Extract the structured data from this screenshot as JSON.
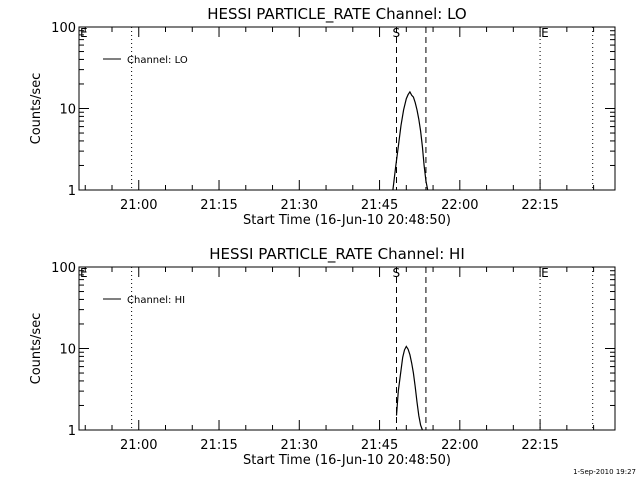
{
  "timestamp": "1-Sep-2010 19:27",
  "chart_data": [
    {
      "type": "line",
      "title": "HESSI PARTICLE_RATE Channel: LO",
      "xlabel": "Start Time (16-Jun-10 20:48:50)",
      "ylabel": "Counts/sec",
      "yscale": "log",
      "ylim": [
        1,
        100
      ],
      "xlim": [
        "20:48:50",
        "22:29:00"
      ],
      "xticks": [
        "21:00",
        "21:15",
        "21:30",
        "21:45",
        "22:00",
        "22:15"
      ],
      "yticks": [
        "1",
        "10",
        "100"
      ],
      "legend": {
        "label": "Channel: LO",
        "position": "top-left"
      },
      "markers": [
        {
          "type": "dotted",
          "time": "20:58:40",
          "label": "E"
        },
        {
          "type": "dashed",
          "time": "21:48:10",
          "label": "S"
        },
        {
          "type": "dashed",
          "time": "21:53:40",
          "label": ""
        },
        {
          "type": "dotted",
          "time": "22:15:00",
          "label": "E"
        },
        {
          "type": "dotted",
          "time": "22:24:50",
          "label": ""
        }
      ],
      "series": [
        {
          "x": [
            "21:47:30",
            "21:48:00",
            "21:48:30",
            "21:49:00",
            "21:49:30",
            "21:50:00",
            "21:50:20",
            "21:50:40",
            "21:51:00",
            "21:51:20",
            "21:51:40",
            "21:52:00",
            "21:52:20",
            "21:52:40",
            "21:53:00",
            "21:53:20",
            "21:53:40",
            "21:54:00"
          ],
          "y": [
            1.0,
            1.9,
            3.4,
            6.2,
            9.6,
            13.2,
            14.8,
            16.0,
            14.5,
            13.8,
            11.8,
            9.6,
            7.4,
            5.3,
            3.4,
            2.0,
            1.3,
            1.0
          ]
        }
      ]
    },
    {
      "type": "line",
      "title": "HESSI PARTICLE_RATE Channel: HI",
      "xlabel": "Start Time (16-Jun-10 20:48:50)",
      "ylabel": "Counts/sec",
      "yscale": "log",
      "ylim": [
        1,
        100
      ],
      "xlim": [
        "20:48:50",
        "22:29:00"
      ],
      "xticks": [
        "21:00",
        "21:15",
        "21:30",
        "21:45",
        "22:00",
        "22:15"
      ],
      "yticks": [
        "1",
        "10",
        "100"
      ],
      "legend": {
        "label": "Channel: HI",
        "position": "top-left"
      },
      "markers": [
        {
          "type": "dotted",
          "time": "20:58:40",
          "label": "E"
        },
        {
          "type": "dashed",
          "time": "21:48:10",
          "label": "S"
        },
        {
          "type": "dashed",
          "time": "21:53:40",
          "label": ""
        },
        {
          "type": "dotted",
          "time": "22:15:00",
          "label": "E"
        },
        {
          "type": "dotted",
          "time": "22:24:50",
          "label": ""
        }
      ],
      "series": [
        {
          "x": [
            "21:48:10",
            "21:48:30",
            "21:49:00",
            "21:49:20",
            "21:49:40",
            "21:50:00",
            "21:50:20",
            "21:50:40",
            "21:51:00",
            "21:51:20",
            "21:51:40",
            "21:52:00",
            "21:52:20",
            "21:52:40",
            "21:53:00"
          ],
          "y": [
            1.5,
            3.0,
            5.4,
            7.8,
            9.6,
            10.6,
            9.8,
            8.4,
            6.6,
            5.0,
            3.4,
            2.2,
            1.5,
            1.15,
            1.0
          ]
        }
      ]
    }
  ]
}
